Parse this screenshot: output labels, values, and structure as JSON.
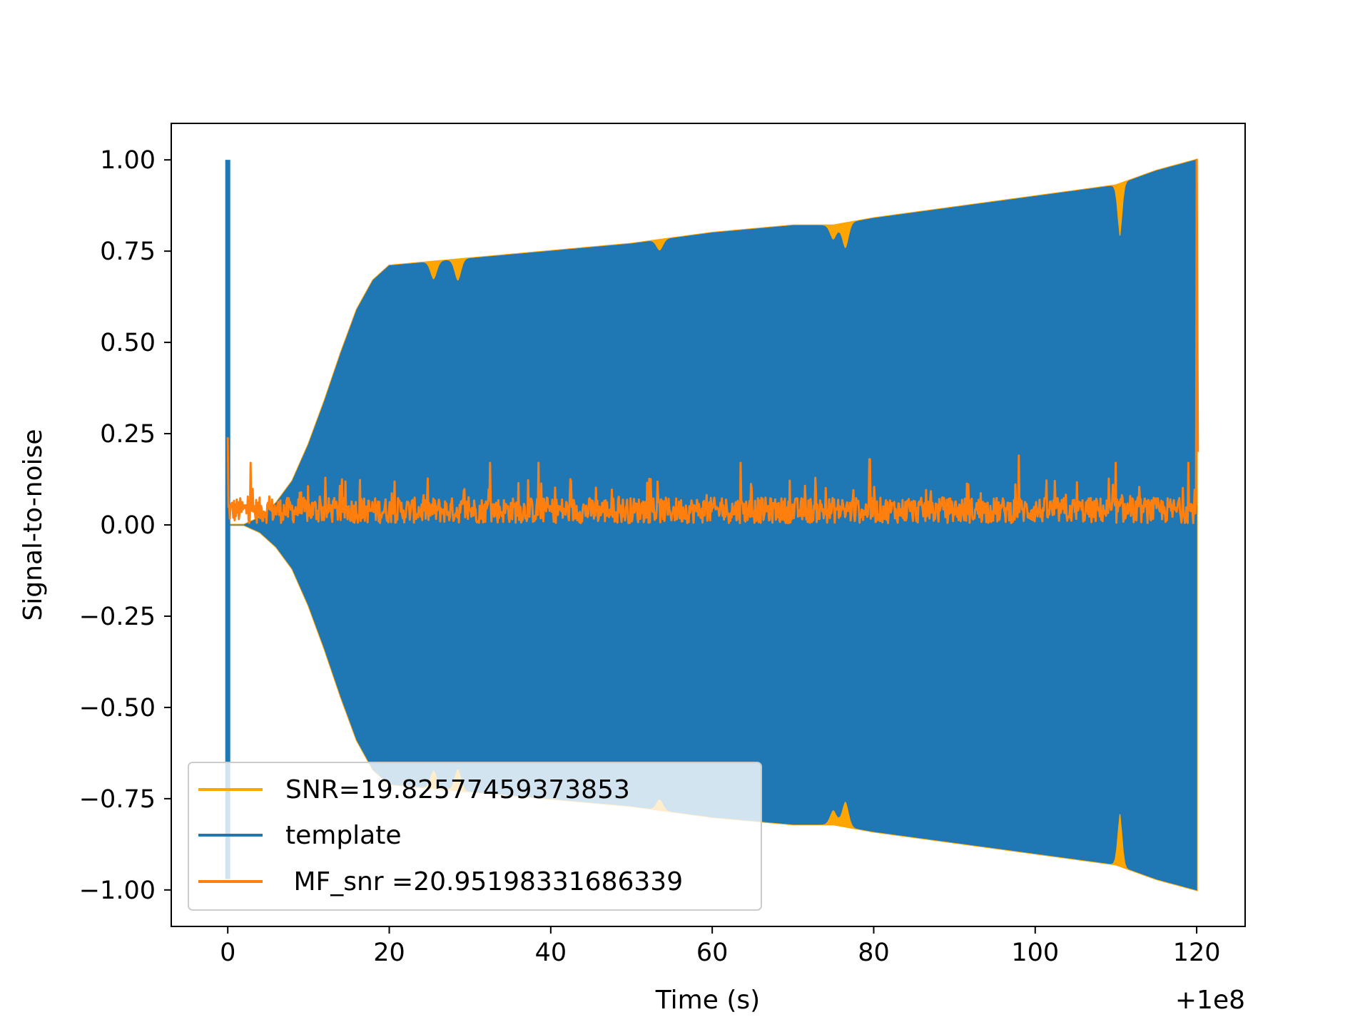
{
  "chart_data": {
    "type": "line",
    "xlabel": "Time (s)",
    "ylabel": "Signal-to-noise",
    "x_offset_label": "+1e8",
    "xlim": [
      -7,
      126
    ],
    "ylim": [
      -1.1,
      1.1
    ],
    "xticks": [
      0,
      20,
      40,
      60,
      80,
      100,
      120
    ],
    "xtick_labels": [
      "0",
      "20",
      "40",
      "60",
      "80",
      "100",
      "120"
    ],
    "yticks": [
      1.0,
      0.75,
      0.5,
      0.25,
      0.0,
      -0.25,
      -0.5,
      -0.75,
      -1.0
    ],
    "ytick_labels": [
      "1.00",
      "0.75",
      "0.50",
      "0.25",
      "0.00",
      "−0.25",
      "−0.50",
      "−0.75",
      "−1.00"
    ],
    "grid": false,
    "legend_position": "lower-left",
    "series": [
      {
        "name": "SNR=19.82577459373853",
        "color": "#ffa500",
        "style": "envelope",
        "x": [
          0,
          2,
          4,
          6,
          8,
          10,
          12,
          14,
          16,
          18,
          20,
          25,
          30,
          40,
          50,
          60,
          70,
          75,
          80,
          90,
          100,
          110,
          115,
          120
        ],
        "upper": [
          0.0,
          0.0,
          0.02,
          0.06,
          0.12,
          0.22,
          0.34,
          0.47,
          0.59,
          0.67,
          0.71,
          0.72,
          0.73,
          0.75,
          0.77,
          0.8,
          0.82,
          0.82,
          0.84,
          0.87,
          0.9,
          0.93,
          0.97,
          1.0
        ],
        "lower": [
          0.0,
          0.0,
          -0.02,
          -0.06,
          -0.12,
          -0.22,
          -0.34,
          -0.47,
          -0.59,
          -0.67,
          -0.71,
          -0.72,
          -0.73,
          -0.75,
          -0.77,
          -0.8,
          -0.82,
          -0.82,
          -0.84,
          -0.87,
          -0.9,
          -0.93,
          -0.97,
          -1.0
        ]
      },
      {
        "name": "template",
        "color": "#1f77b4",
        "style": "envelope",
        "x": [
          0,
          2,
          4,
          6,
          8,
          10,
          12,
          14,
          16,
          18,
          20,
          25,
          30,
          40,
          50,
          60,
          70,
          75,
          80,
          90,
          100,
          110,
          115,
          120
        ],
        "upper": [
          0.0,
          0.0,
          0.02,
          0.06,
          0.12,
          0.22,
          0.34,
          0.47,
          0.59,
          0.67,
          0.71,
          0.72,
          0.73,
          0.75,
          0.77,
          0.8,
          0.82,
          0.82,
          0.84,
          0.87,
          0.9,
          0.93,
          0.97,
          1.0
        ],
        "lower": [
          0.0,
          0.0,
          -0.02,
          -0.06,
          -0.12,
          -0.22,
          -0.34,
          -0.47,
          -0.59,
          -0.67,
          -0.71,
          -0.72,
          -0.73,
          -0.75,
          -0.77,
          -0.8,
          -0.82,
          -0.82,
          -0.84,
          -0.87,
          -0.9,
          -0.93,
          -0.97,
          -1.0
        ],
        "spikes": [
          {
            "x": 0.0,
            "y_min": -0.97,
            "y_max": 1.0
          }
        ],
        "dips": [
          {
            "x": 25.5,
            "depth": 0.05
          },
          {
            "x": 28.5,
            "depth": 0.06
          },
          {
            "x": 53.5,
            "depth": 0.03
          },
          {
            "x": 75.0,
            "depth": 0.04
          },
          {
            "x": 76.5,
            "depth": 0.07
          },
          {
            "x": 110.5,
            "depth": 0.15
          }
        ]
      },
      {
        "name": " MF_snr =20.95198331686339",
        "color": "#ff7f0e",
        "style": "noise",
        "x_range": [
          0,
          120
        ],
        "baseline": 0.04,
        "peaks": [
          {
            "x": 0.0,
            "y": 0.24
          },
          {
            "x": 2.8,
            "y": 0.17
          },
          {
            "x": 32.5,
            "y": 0.17
          },
          {
            "x": 38.5,
            "y": 0.17
          },
          {
            "x": 63.5,
            "y": 0.17
          },
          {
            "x": 79.5,
            "y": 0.18
          },
          {
            "x": 98.0,
            "y": 0.19
          },
          {
            "x": 110.0,
            "y": 0.17
          },
          {
            "x": 119.0,
            "y": 0.17
          },
          {
            "x": 120.0,
            "y": 1.0
          }
        ]
      }
    ]
  }
}
